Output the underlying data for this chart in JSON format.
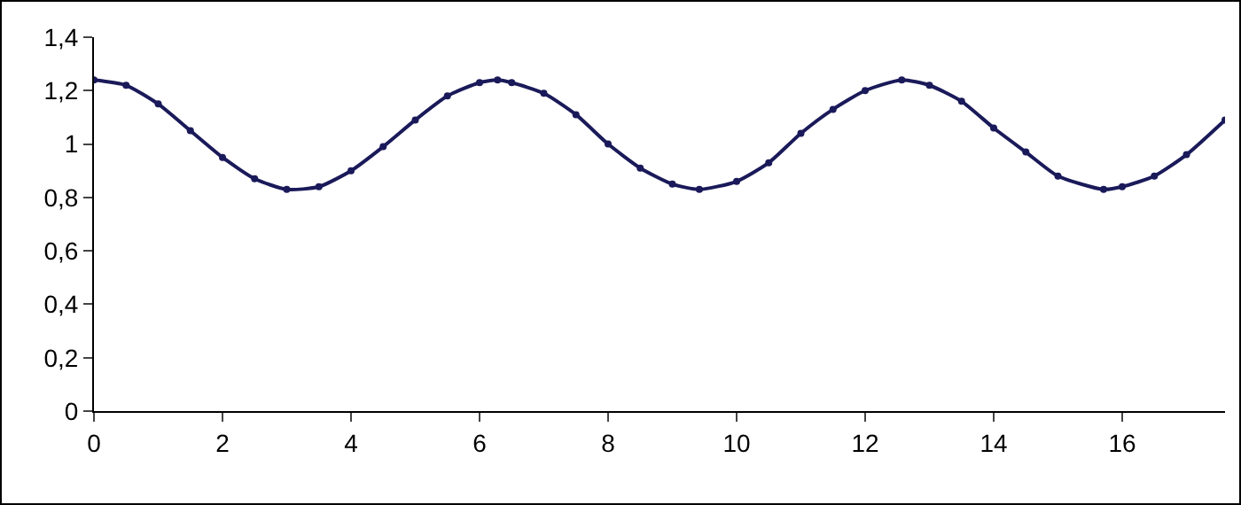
{
  "chart_data": {
    "type": "line",
    "x": [
      0,
      0.5,
      1,
      1.5,
      2,
      2.5,
      3,
      3.5,
      4,
      4.5,
      5,
      5.5,
      6,
      6.28,
      6.5,
      7,
      7.5,
      8,
      8.5,
      9,
      9.42,
      10,
      10.5,
      11,
      11.5,
      12,
      12.57,
      13,
      13.5,
      14,
      14.5,
      15,
      15.71,
      16,
      16.5,
      17,
      17.6
    ],
    "series": [
      {
        "color": "#1a1a5a",
        "values": [
          1.24,
          1.22,
          1.15,
          1.05,
          0.95,
          0.87,
          0.83,
          0.84,
          0.9,
          0.99,
          1.09,
          1.18,
          1.23,
          1.24,
          1.23,
          1.19,
          1.11,
          1.0,
          0.91,
          0.85,
          0.83,
          0.86,
          0.93,
          1.04,
          1.13,
          1.2,
          1.24,
          1.22,
          1.16,
          1.06,
          0.97,
          0.88,
          0.83,
          0.84,
          0.88,
          0.96,
          1.09
        ]
      }
    ],
    "xlim": [
      0,
      17.6
    ],
    "xticks": [
      0,
      2,
      4,
      6,
      8,
      10,
      12,
      14,
      16
    ],
    "ylim": [
      0,
      1.4
    ],
    "yticks": [
      0,
      {
        "value": 0.2,
        "label": "0,2"
      },
      {
        "value": 0.4,
        "label": "0,4"
      },
      {
        "value": 0.6,
        "label": "0,6"
      },
      {
        "value": 0.8,
        "label": "0,8"
      },
      1,
      {
        "value": 1.2,
        "label": "1,2"
      },
      {
        "value": 1.4,
        "label": "1,4"
      }
    ],
    "grid": false,
    "marker": "circle",
    "line_style": "solid"
  }
}
